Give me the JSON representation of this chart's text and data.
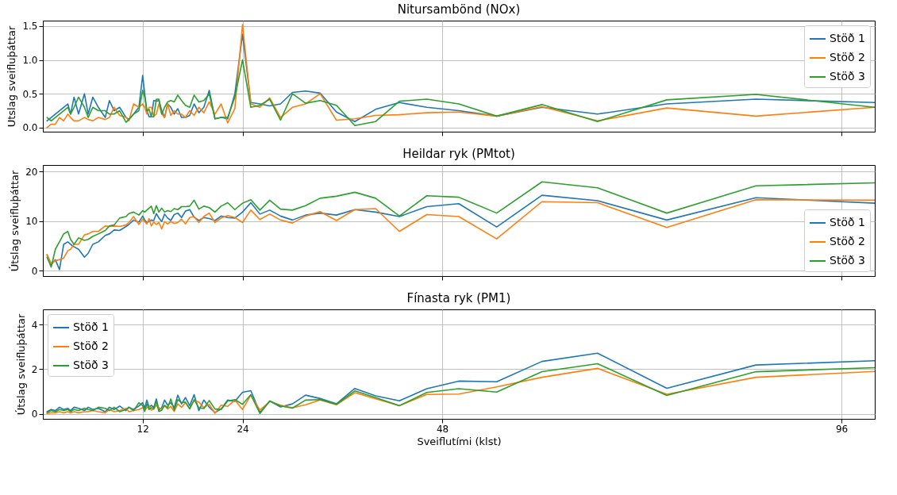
{
  "chart_data": [
    {
      "type": "line",
      "title": "Nitursambönd (NOx)",
      "ylabel": "Utslag sveifluþáttar",
      "xlim": [
        0,
        100
      ],
      "xticks": [
        12,
        24,
        48,
        96
      ],
      "ylim": [
        -0.06,
        1.58
      ],
      "yticks": [
        {
          "value": 0,
          "label": "0.0"
        },
        {
          "value": 0.5,
          "label": "0.5"
        },
        {
          "value": 1,
          "label": "1.0"
        },
        {
          "value": 1.5,
          "label": "1.5"
        }
      ],
      "grid": true,
      "legend": "top right",
      "tick_labels": "y",
      "x": [
        0.5,
        1,
        1.5,
        2,
        2.5,
        3,
        3.33,
        3.75,
        4.29,
        5,
        5.45,
        6,
        6.67,
        7.5,
        8,
        8.57,
        9.23,
        10,
        10.34,
        10.91,
        11.54,
        12,
        12.24,
        12.5,
        12.77,
        13.04,
        13.33,
        13.64,
        13.95,
        14.29,
        14.63,
        15,
        15.38,
        15.79,
        16.22,
        16.67,
        17.14,
        17.65,
        18.18,
        18.75,
        19.35,
        20,
        20.69,
        21.43,
        22.22,
        23.08,
        24,
        25,
        26.09,
        27.27,
        28.57,
        30,
        31.58,
        33.33,
        35.29,
        37.5,
        40,
        42.86,
        46.15,
        50,
        54.55,
        60,
        66.67,
        75,
        85.71,
        100
      ],
      "series": [
        {
          "name": "Stöð 1",
          "color": "#1f77b4",
          "values": [
            0.1,
            0.15,
            0.2,
            0.25,
            0.3,
            0.35,
            0.2,
            0.45,
            0.2,
            0.5,
            0.2,
            0.45,
            0.3,
            0.15,
            0.4,
            0.25,
            0.3,
            0.15,
            0.12,
            0.2,
            0.3,
            0.77,
            0.5,
            0.25,
            0.16,
            0.16,
            0.4,
            0.39,
            0.4,
            0.25,
            0.15,
            0.35,
            0.3,
            0.2,
            0.28,
            0.15,
            0.15,
            0.18,
            0.35,
            0.22,
            0.3,
            0.55,
            0.13,
            0.15,
            0.13,
            0.5,
            1.38,
            0.37,
            0.35,
            0.32,
            0.35,
            0.52,
            0.54,
            0.51,
            0.23,
            0.09,
            0.27,
            0.37,
            0.3,
            0.25,
            0.17,
            0.3,
            0.2,
            0.35,
            0.42,
            0.37
          ]
        },
        {
          "name": "Stöð 2",
          "color": "#ff7f0e",
          "values": [
            0.0,
            0.05,
            0.05,
            0.15,
            0.1,
            0.2,
            0.15,
            0.1,
            0.1,
            0.15,
            0.12,
            0.1,
            0.15,
            0.12,
            0.15,
            0.3,
            0.18,
            0.15,
            0.1,
            0.35,
            0.3,
            0.35,
            0.3,
            0.2,
            0.3,
            0.3,
            0.17,
            0.2,
            0.35,
            0.2,
            0.15,
            0.35,
            0.18,
            0.25,
            0.2,
            0.2,
            0.15,
            0.25,
            0.18,
            0.3,
            0.22,
            0.38,
            0.2,
            0.35,
            0.07,
            0.28,
            1.52,
            0.35,
            0.3,
            0.44,
            0.15,
            0.3,
            0.35,
            0.5,
            0.11,
            0.13,
            0.18,
            0.19,
            0.22,
            0.23,
            0.17,
            0.31,
            0.1,
            0.29,
            0.17,
            0.3
          ]
        },
        {
          "name": "Stöð 3",
          "color": "#2ca02c",
          "values": [
            0.15,
            0.1,
            0.15,
            0.2,
            0.25,
            0.3,
            0.2,
            0.3,
            0.45,
            0.3,
            0.15,
            0.3,
            0.25,
            0.25,
            0.2,
            0.2,
            0.25,
            0.08,
            0.12,
            0.2,
            0.25,
            0.55,
            0.45,
            0.25,
            0.27,
            0.16,
            0.16,
            0.42,
            0.42,
            0.2,
            0.3,
            0.38,
            0.4,
            0.38,
            0.48,
            0.4,
            0.33,
            0.3,
            0.48,
            0.38,
            0.4,
            0.5,
            0.13,
            0.15,
            0.15,
            0.45,
            1.0,
            0.3,
            0.33,
            0.42,
            0.11,
            0.5,
            0.36,
            0.4,
            0.33,
            0.03,
            0.09,
            0.39,
            0.42,
            0.35,
            0.17,
            0.34,
            0.09,
            0.41,
            0.49,
            0.3
          ]
        }
      ]
    },
    {
      "type": "line",
      "title": "Heildar ryk (PMtot)",
      "ylabel": "Útslag sveifluþáttar",
      "xlim": [
        0,
        100
      ],
      "xticks": [
        12,
        24,
        48,
        96
      ],
      "ylim": [
        -1.1,
        21.3
      ],
      "yticks": [
        0,
        10,
        20
      ],
      "grid": true,
      "legend": "bottom right",
      "tick_labels": "y",
      "x": [
        0.5,
        1,
        1.5,
        2,
        2.5,
        3,
        3.33,
        3.75,
        4.29,
        5,
        5.45,
        6,
        6.67,
        7.5,
        8,
        8.57,
        9.23,
        10,
        10.34,
        10.91,
        11.54,
        12,
        12.24,
        12.5,
        12.77,
        13.04,
        13.33,
        13.64,
        13.95,
        14.29,
        14.63,
        15,
        15.38,
        15.79,
        16.22,
        16.67,
        17.14,
        17.65,
        18.18,
        18.75,
        19.35,
        20,
        20.69,
        21.43,
        22.22,
        23.08,
        24,
        25,
        26.09,
        27.27,
        28.57,
        30,
        31.58,
        33.33,
        35.29,
        37.5,
        40,
        42.86,
        46.15,
        50,
        54.55,
        60,
        66.67,
        75,
        85.71,
        100
      ],
      "series": [
        {
          "name": "Stöð 1",
          "color": "#1f77b4",
          "values": [
            3.2,
            1.2,
            2.2,
            0.2,
            5.3,
            5.8,
            5.3,
            4.8,
            4.3,
            2.7,
            3.5,
            5.3,
            5.8,
            7.1,
            7.4,
            8.2,
            8.1,
            8.9,
            9.3,
            10.2,
            9.8,
            11.0,
            10.2,
            9.7,
            9.9,
            10.2,
            10.1,
            11.5,
            10.6,
            9.9,
            11.4,
            10.6,
            10.1,
            11.3,
            11.6,
            10.7,
            12.0,
            12.3,
            10.8,
            10.1,
            10.7,
            10.5,
            10.1,
            11.0,
            10.7,
            10.6,
            11.8,
            13.7,
            11.4,
            12.2,
            11.0,
            10.2,
            11.2,
            11.6,
            11.2,
            12.3,
            11.8,
            10.9,
            12.9,
            13.5,
            8.8,
            15.2,
            14.1,
            10.2,
            14.7,
            13.6
          ]
        },
        {
          "name": "Stöð 2",
          "color": "#ff7f0e",
          "values": [
            3.2,
            1.4,
            2.0,
            2.2,
            2.5,
            4.0,
            4.3,
            5.3,
            5.3,
            7.2,
            7.4,
            7.9,
            7.9,
            9.0,
            8.9,
            9.0,
            8.9,
            9.2,
            9.7,
            10.9,
            9.3,
            10.4,
            9.9,
            9.4,
            10.5,
            9.0,
            9.8,
            9.3,
            9.7,
            8.4,
            9.9,
            9.4,
            9.9,
            9.5,
            9.7,
            10.4,
            9.4,
            10.7,
            10.9,
            9.7,
            10.9,
            11.6,
            9.7,
            10.6,
            11.1,
            10.7,
            9.7,
            12.2,
            10.3,
            11.4,
            10.2,
            9.6,
            11.0,
            11.9,
            10.1,
            12.3,
            12.5,
            7.9,
            11.3,
            10.9,
            6.4,
            13.9,
            13.7,
            8.7,
            14.3,
            14.2
          ]
        },
        {
          "name": "Stöð 3",
          "color": "#2ca02c",
          "values": [
            2.7,
            0.7,
            4.3,
            5.8,
            7.4,
            7.9,
            6.3,
            5.3,
            6.6,
            6.1,
            6.3,
            6.9,
            7.4,
            8.1,
            9.0,
            9.2,
            10.6,
            10.9,
            11.5,
            11.8,
            11.2,
            12.1,
            11.8,
            12.2,
            12.6,
            13.0,
            11.5,
            13.1,
            11.8,
            12.6,
            11.8,
            12.1,
            11.9,
            12.5,
            12.3,
            12.9,
            12.9,
            13.0,
            14.2,
            12.4,
            13.0,
            12.7,
            11.8,
            13.0,
            13.7,
            12.3,
            13.6,
            14.3,
            12.2,
            14.2,
            12.4,
            12.2,
            13.1,
            14.6,
            15.0,
            15.8,
            14.6,
            11.0,
            15.1,
            14.8,
            11.6,
            17.9,
            16.7,
            11.6,
            17.1,
            17.7
          ]
        }
      ]
    },
    {
      "type": "line",
      "title": "Fínasta ryk (PM1)",
      "xlabel": "Sveiflutími (klst)",
      "ylabel": "Útslag sveifluþáttar",
      "xlim": [
        0,
        100
      ],
      "xticks": [
        12,
        24,
        48,
        96
      ],
      "ylim": [
        -0.22,
        4.68
      ],
      "yticks": [
        0,
        2,
        4
      ],
      "grid": true,
      "legend": "top left",
      "x": [
        0.5,
        1,
        1.5,
        2,
        2.5,
        3,
        3.33,
        3.75,
        4.29,
        5,
        5.45,
        6,
        6.67,
        7.5,
        8,
        8.57,
        9.23,
        10,
        10.34,
        10.91,
        11.54,
        12,
        12.24,
        12.5,
        12.77,
        13.04,
        13.33,
        13.64,
        13.95,
        14.29,
        14.63,
        15,
        15.38,
        15.79,
        16.22,
        16.67,
        17.14,
        17.65,
        18.18,
        18.75,
        19.35,
        20,
        20.69,
        21.43,
        22.22,
        23.08,
        24,
        25,
        26.09,
        27.27,
        28.57,
        30,
        31.58,
        33.33,
        35.29,
        37.5,
        40,
        42.86,
        46.15,
        50,
        54.55,
        60,
        66.67,
        75,
        85.71,
        100
      ],
      "series": [
        {
          "name": "Stöð 1",
          "color": "#1f77b4",
          "values": [
            0.1,
            0.2,
            0.15,
            0.3,
            0.2,
            0.25,
            0.15,
            0.3,
            0.25,
            0.15,
            0.3,
            0.2,
            0.25,
            0.1,
            0.3,
            0.2,
            0.35,
            0.15,
            0.3,
            0.2,
            0.35,
            0.5,
            0.26,
            0.62,
            0.3,
            0.39,
            0.28,
            0.67,
            0.17,
            0.28,
            0.62,
            0.39,
            0.5,
            0.28,
            0.84,
            0.45,
            0.73,
            0.37,
            0.86,
            0.15,
            0.62,
            0.3,
            0.06,
            0.22,
            0.62,
            0.56,
            0.97,
            1.04,
            0.06,
            0.58,
            0.31,
            0.45,
            0.84,
            0.69,
            0.45,
            1.14,
            0.81,
            0.59,
            1.13,
            1.47,
            1.44,
            2.35,
            2.72,
            1.15,
            2.19,
            2.38
          ]
        },
        {
          "name": "Stöð 2",
          "color": "#ff7f0e",
          "values": [
            0.02,
            0.05,
            0.05,
            0.1,
            0.05,
            0.1,
            0.05,
            0.1,
            0.05,
            0.1,
            0.1,
            0.15,
            0.1,
            0.05,
            0.2,
            0.1,
            0.15,
            0.25,
            0.1,
            0.15,
            0.2,
            0.28,
            0.17,
            0.28,
            0.33,
            0.17,
            0.22,
            0.39,
            0.28,
            0.22,
            0.37,
            0.22,
            0.34,
            0.11,
            0.45,
            0.3,
            0.5,
            0.26,
            0.59,
            0.53,
            0.28,
            0.43,
            0.03,
            0.39,
            0.34,
            0.62,
            0.2,
            0.84,
            0.17,
            0.56,
            0.39,
            0.28,
            0.41,
            0.62,
            0.41,
            0.95,
            0.68,
            0.37,
            0.87,
            0.89,
            1.21,
            1.64,
            2.04,
            0.88,
            1.64,
            1.9
          ]
        },
        {
          "name": "Stöð 3",
          "color": "#2ca02c",
          "values": [
            0.05,
            0.15,
            0.1,
            0.2,
            0.15,
            0.2,
            0.1,
            0.2,
            0.15,
            0.25,
            0.2,
            0.15,
            0.3,
            0.25,
            0.15,
            0.3,
            0.1,
            0.2,
            0.3,
            0.15,
            0.5,
            0.37,
            0.11,
            0.45,
            0.2,
            0.28,
            0.22,
            0.56,
            0.11,
            0.17,
            0.39,
            0.28,
            0.67,
            0.17,
            0.64,
            0.5,
            0.53,
            0.22,
            0.64,
            0.28,
            0.24,
            0.6,
            0.22,
            0.2,
            0.58,
            0.64,
            0.43,
            0.86,
            0.02,
            0.58,
            0.36,
            0.26,
            0.62,
            0.64,
            0.43,
            1.03,
            0.73,
            0.37,
            0.96,
            1.13,
            0.98,
            1.89,
            2.25,
            0.83,
            1.89,
            2.07
          ]
        }
      ]
    }
  ]
}
